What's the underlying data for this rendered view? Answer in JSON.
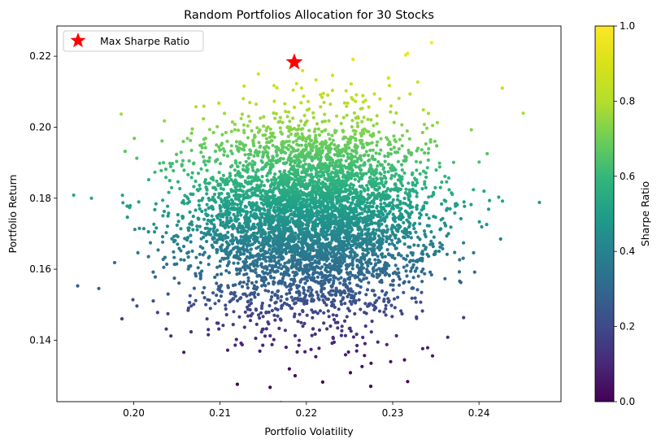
{
  "chart_data": {
    "type": "scatter",
    "title": "Random Portfolios Allocation for 30 Stocks",
    "xlabel": "Portfolio Volatility",
    "ylabel": "Portfolio Return",
    "xlim": [
      0.1911,
      0.2495
    ],
    "ylim": [
      0.1227,
      0.2285
    ],
    "x_ticks": [
      "0.20",
      "0.21",
      "0.22",
      "0.23",
      "0.24"
    ],
    "y_ticks": [
      "0.14",
      "0.16",
      "0.18",
      "0.20",
      "0.22"
    ],
    "legend": {
      "position": "top-left",
      "entries": [
        "Max Sharpe Ratio"
      ]
    },
    "max_sharpe": {
      "x": 0.2186,
      "y": 0.2183,
      "marker": "star",
      "color": "#ff0000"
    },
    "colorbar": {
      "label": "Sharpe Ratio",
      "range": [
        0,
        1
      ],
      "ticks": [
        "0.0",
        "0.2",
        "0.4",
        "0.6",
        "0.8",
        "1.0"
      ],
      "colormap": "viridis"
    },
    "scatter_distribution": {
      "x_mean": 0.2205,
      "x_std": 0.0068,
      "y_mean": 0.1745,
      "y_std": 0.0135,
      "points_shown": 30000,
      "notable_points": [
        {
          "x": 0.1935,
          "y": 0.1553
        },
        {
          "x": 0.2345,
          "y": 0.2238
        },
        {
          "x": 0.247,
          "y": 0.1788
        },
        {
          "x": 0.212,
          "y": 0.1276
        },
        {
          "x": 0.2187,
          "y": 0.13
        },
        {
          "x": 0.2427,
          "y": 0.211
        },
        {
          "x": 0.2275,
          "y": 0.1335
        },
        {
          "x": 0.1951,
          "y": 0.18
        },
        {
          "x": 0.199,
          "y": 0.1932
        },
        {
          "x": 0.2425,
          "y": 0.1685
        },
        {
          "x": 0.2058,
          "y": 0.1366
        },
        {
          "x": 0.2315,
          "y": 0.2203
        }
      ]
    }
  }
}
